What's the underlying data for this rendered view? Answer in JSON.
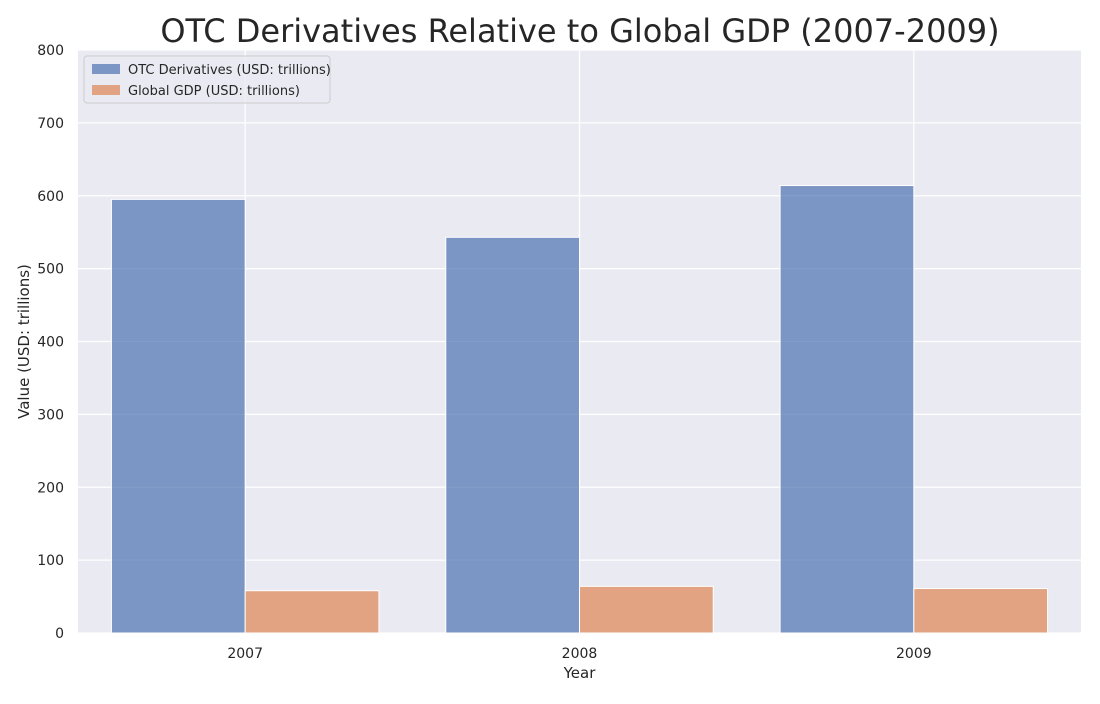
{
  "chart_data": {
    "type": "bar",
    "title": "OTC Derivatives Relative to Global GDP (2007-2009)",
    "xlabel": "Year",
    "ylabel": "Value (USD: trillions)",
    "categories": [
      "2007",
      "2008",
      "2009"
    ],
    "series": [
      {
        "name": "OTC Derivatives (USD: trillions)",
        "values": [
          595,
          543,
          614
        ],
        "color": "#4c72b0"
      },
      {
        "name": "Global GDP (USD: trillions)",
        "values": [
          58,
          64,
          61
        ],
        "color": "#dd8452"
      }
    ],
    "ylim": [
      0,
      800
    ],
    "yticks": [
      "0",
      "100",
      "200",
      "300",
      "400",
      "500",
      "600",
      "700",
      "800"
    ],
    "grid": true,
    "legend_position": "top-left",
    "plot_background": "#eaeaf2",
    "grid_color": "#ffffff"
  }
}
